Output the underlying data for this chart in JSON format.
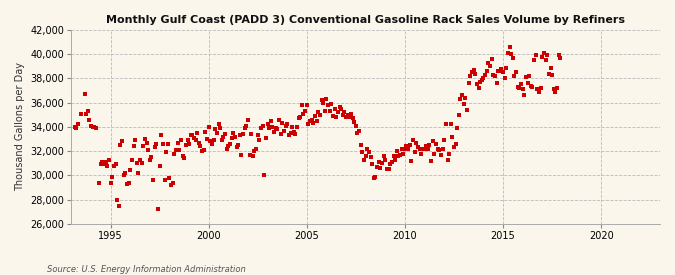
{
  "title": "Monthly Gulf Coast (PADD 3) Conventional Gasoline Rack Sales Volume by Refiners",
  "ylabel": "Thousand Gallons per Day",
  "source": "Source: U.S. Energy Information Administration",
  "background_color": "#FAF6EC",
  "plot_bg_color": "#FAF6EC",
  "marker_color": "#CC0000",
  "grid_color": "#BBBBBB",
  "ylim": [
    26000,
    42000
  ],
  "yticks": [
    26000,
    28000,
    30000,
    32000,
    34000,
    36000,
    38000,
    40000,
    42000
  ],
  "xticks": [
    1995,
    2000,
    2005,
    2010,
    2015,
    2020
  ],
  "xlim_start": 1993.0,
  "xlim_end": 2023.0,
  "data": [
    [
      1993.17,
      34000
    ],
    [
      1993.25,
      33900
    ],
    [
      1993.33,
      34200
    ],
    [
      1993.5,
      35100
    ],
    [
      1993.67,
      36700
    ],
    [
      1993.75,
      35100
    ],
    [
      1993.83,
      35300
    ],
    [
      1993.92,
      34600
    ],
    [
      1994.0,
      34100
    ],
    [
      1994.08,
      34000
    ],
    [
      1994.17,
      34000
    ],
    [
      1994.25,
      33900
    ],
    [
      1994.42,
      29400
    ],
    [
      1994.5,
      30900
    ],
    [
      1994.58,
      31100
    ],
    [
      1994.67,
      30900
    ],
    [
      1994.75,
      31100
    ],
    [
      1994.83,
      30800
    ],
    [
      1994.92,
      31300
    ],
    [
      1995.0,
      29400
    ],
    [
      1995.08,
      29900
    ],
    [
      1995.17,
      30800
    ],
    [
      1995.25,
      30900
    ],
    [
      1995.33,
      28000
    ],
    [
      1995.42,
      27500
    ],
    [
      1995.5,
      32500
    ],
    [
      1995.58,
      32800
    ],
    [
      1995.67,
      30000
    ],
    [
      1995.75,
      30200
    ],
    [
      1995.83,
      29300
    ],
    [
      1995.92,
      29400
    ],
    [
      1996.0,
      30400
    ],
    [
      1996.08,
      31300
    ],
    [
      1996.17,
      32400
    ],
    [
      1996.25,
      32900
    ],
    [
      1996.33,
      31000
    ],
    [
      1996.42,
      30200
    ],
    [
      1996.5,
      31300
    ],
    [
      1996.58,
      31000
    ],
    [
      1996.67,
      32400
    ],
    [
      1996.75,
      33000
    ],
    [
      1996.83,
      32700
    ],
    [
      1996.92,
      32100
    ],
    [
      1997.0,
      31300
    ],
    [
      1997.08,
      31500
    ],
    [
      1997.17,
      29600
    ],
    [
      1997.25,
      32300
    ],
    [
      1997.33,
      32600
    ],
    [
      1997.42,
      27200
    ],
    [
      1997.5,
      30800
    ],
    [
      1997.58,
      33300
    ],
    [
      1997.67,
      32600
    ],
    [
      1997.75,
      29600
    ],
    [
      1997.83,
      31900
    ],
    [
      1997.92,
      32600
    ],
    [
      1998.0,
      29800
    ],
    [
      1998.08,
      29200
    ],
    [
      1998.17,
      29400
    ],
    [
      1998.25,
      31800
    ],
    [
      1998.33,
      32100
    ],
    [
      1998.42,
      32700
    ],
    [
      1998.5,
      32100
    ],
    [
      1998.58,
      32900
    ],
    [
      1998.67,
      31600
    ],
    [
      1998.75,
      31400
    ],
    [
      1998.83,
      32500
    ],
    [
      1998.92,
      32900
    ],
    [
      1999.0,
      32600
    ],
    [
      1999.08,
      33300
    ],
    [
      1999.17,
      33300
    ],
    [
      1999.25,
      33100
    ],
    [
      1999.33,
      32900
    ],
    [
      1999.42,
      33500
    ],
    [
      1999.5,
      32700
    ],
    [
      1999.58,
      32400
    ],
    [
      1999.67,
      32000
    ],
    [
      1999.75,
      32100
    ],
    [
      1999.83,
      33600
    ],
    [
      1999.92,
      33000
    ],
    [
      2000.0,
      34000
    ],
    [
      2000.08,
      32800
    ],
    [
      2000.17,
      32600
    ],
    [
      2000.25,
      32900
    ],
    [
      2000.33,
      33800
    ],
    [
      2000.42,
      33500
    ],
    [
      2000.5,
      34200
    ],
    [
      2000.58,
      33900
    ],
    [
      2000.67,
      32900
    ],
    [
      2000.75,
      33200
    ],
    [
      2000.83,
      33400
    ],
    [
      2000.92,
      32200
    ],
    [
      2001.0,
      32400
    ],
    [
      2001.08,
      32600
    ],
    [
      2001.17,
      33100
    ],
    [
      2001.25,
      33500
    ],
    [
      2001.33,
      33200
    ],
    [
      2001.42,
      32300
    ],
    [
      2001.5,
      32500
    ],
    [
      2001.58,
      33300
    ],
    [
      2001.67,
      31700
    ],
    [
      2001.75,
      33400
    ],
    [
      2001.83,
      33900
    ],
    [
      2001.92,
      34100
    ],
    [
      2002.0,
      34600
    ],
    [
      2002.08,
      31700
    ],
    [
      2002.17,
      33400
    ],
    [
      2002.25,
      31600
    ],
    [
      2002.33,
      32000
    ],
    [
      2002.42,
      32200
    ],
    [
      2002.5,
      33300
    ],
    [
      2002.58,
      32900
    ],
    [
      2002.67,
      33900
    ],
    [
      2002.75,
      34100
    ],
    [
      2002.83,
      30000
    ],
    [
      2002.92,
      33100
    ],
    [
      2003.0,
      34200
    ],
    [
      2003.08,
      33900
    ],
    [
      2003.17,
      34500
    ],
    [
      2003.25,
      34000
    ],
    [
      2003.33,
      33600
    ],
    [
      2003.42,
      33900
    ],
    [
      2003.5,
      33800
    ],
    [
      2003.58,
      34600
    ],
    [
      2003.67,
      33400
    ],
    [
      2003.75,
      34300
    ],
    [
      2003.83,
      33700
    ],
    [
      2003.92,
      34100
    ],
    [
      2004.0,
      34200
    ],
    [
      2004.08,
      33300
    ],
    [
      2004.17,
      33500
    ],
    [
      2004.25,
      34000
    ],
    [
      2004.33,
      33600
    ],
    [
      2004.42,
      33400
    ],
    [
      2004.5,
      34000
    ],
    [
      2004.58,
      34700
    ],
    [
      2004.67,
      34800
    ],
    [
      2004.75,
      35800
    ],
    [
      2004.83,
      35100
    ],
    [
      2004.92,
      35300
    ],
    [
      2005.0,
      35800
    ],
    [
      2005.08,
      34200
    ],
    [
      2005.17,
      34500
    ],
    [
      2005.25,
      34600
    ],
    [
      2005.33,
      34300
    ],
    [
      2005.42,
      34900
    ],
    [
      2005.5,
      34500
    ],
    [
      2005.58,
      35200
    ],
    [
      2005.67,
      35000
    ],
    [
      2005.75,
      36200
    ],
    [
      2005.83,
      36000
    ],
    [
      2005.92,
      35300
    ],
    [
      2006.0,
      36300
    ],
    [
      2006.08,
      35800
    ],
    [
      2006.17,
      35300
    ],
    [
      2006.25,
      35900
    ],
    [
      2006.33,
      34900
    ],
    [
      2006.42,
      35500
    ],
    [
      2006.5,
      34800
    ],
    [
      2006.58,
      35200
    ],
    [
      2006.67,
      35600
    ],
    [
      2006.75,
      35500
    ],
    [
      2006.83,
      35000
    ],
    [
      2006.92,
      35200
    ],
    [
      2007.0,
      34800
    ],
    [
      2007.08,
      35000
    ],
    [
      2007.17,
      34800
    ],
    [
      2007.25,
      35100
    ],
    [
      2007.33,
      34700
    ],
    [
      2007.42,
      34400
    ],
    [
      2007.5,
      34100
    ],
    [
      2007.58,
      33500
    ],
    [
      2007.67,
      33700
    ],
    [
      2007.75,
      32500
    ],
    [
      2007.83,
      31900
    ],
    [
      2007.92,
      31300
    ],
    [
      2008.0,
      31600
    ],
    [
      2008.08,
      32200
    ],
    [
      2008.17,
      31900
    ],
    [
      2008.25,
      31500
    ],
    [
      2008.33,
      30900
    ],
    [
      2008.42,
      29800
    ],
    [
      2008.5,
      29900
    ],
    [
      2008.58,
      30700
    ],
    [
      2008.67,
      31100
    ],
    [
      2008.75,
      30600
    ],
    [
      2008.83,
      31000
    ],
    [
      2008.92,
      31600
    ],
    [
      2009.0,
      31300
    ],
    [
      2009.08,
      30500
    ],
    [
      2009.17,
      30500
    ],
    [
      2009.25,
      30900
    ],
    [
      2009.33,
      31100
    ],
    [
      2009.42,
      31600
    ],
    [
      2009.5,
      31300
    ],
    [
      2009.58,
      32000
    ],
    [
      2009.67,
      31600
    ],
    [
      2009.75,
      31700
    ],
    [
      2009.83,
      32200
    ],
    [
      2009.92,
      31800
    ],
    [
      2010.0,
      32200
    ],
    [
      2010.08,
      32400
    ],
    [
      2010.17,
      32200
    ],
    [
      2010.25,
      32500
    ],
    [
      2010.33,
      31200
    ],
    [
      2010.42,
      32900
    ],
    [
      2010.5,
      31900
    ],
    [
      2010.58,
      32700
    ],
    [
      2010.67,
      32300
    ],
    [
      2010.75,
      32200
    ],
    [
      2010.83,
      31800
    ],
    [
      2010.92,
      32200
    ],
    [
      2011.0,
      32200
    ],
    [
      2011.08,
      32400
    ],
    [
      2011.17,
      32200
    ],
    [
      2011.25,
      32500
    ],
    [
      2011.33,
      31200
    ],
    [
      2011.42,
      32800
    ],
    [
      2011.5,
      31800
    ],
    [
      2011.58,
      32600
    ],
    [
      2011.67,
      32200
    ],
    [
      2011.75,
      32100
    ],
    [
      2011.83,
      31700
    ],
    [
      2011.92,
      32200
    ],
    [
      2012.0,
      32900
    ],
    [
      2012.08,
      34200
    ],
    [
      2012.17,
      31300
    ],
    [
      2012.25,
      31800
    ],
    [
      2012.33,
      34200
    ],
    [
      2012.42,
      33200
    ],
    [
      2012.5,
      32300
    ],
    [
      2012.58,
      32600
    ],
    [
      2012.67,
      33900
    ],
    [
      2012.75,
      35000
    ],
    [
      2012.83,
      36300
    ],
    [
      2012.92,
      36600
    ],
    [
      2013.0,
      35900
    ],
    [
      2013.08,
      36400
    ],
    [
      2013.17,
      35400
    ],
    [
      2013.25,
      37600
    ],
    [
      2013.33,
      38200
    ],
    [
      2013.42,
      38500
    ],
    [
      2013.5,
      38700
    ],
    [
      2013.58,
      38400
    ],
    [
      2013.67,
      37500
    ],
    [
      2013.75,
      37200
    ],
    [
      2013.83,
      37700
    ],
    [
      2013.92,
      37900
    ],
    [
      2014.0,
      38000
    ],
    [
      2014.08,
      38300
    ],
    [
      2014.17,
      38600
    ],
    [
      2014.25,
      39300
    ],
    [
      2014.33,
      39000
    ],
    [
      2014.42,
      39600
    ],
    [
      2014.5,
      38300
    ],
    [
      2014.58,
      38200
    ],
    [
      2014.67,
      37600
    ],
    [
      2014.75,
      38600
    ],
    [
      2014.83,
      38600
    ],
    [
      2014.92,
      38800
    ],
    [
      2015.0,
      38500
    ],
    [
      2015.08,
      38000
    ],
    [
      2015.17,
      38900
    ],
    [
      2015.25,
      40100
    ],
    [
      2015.33,
      40600
    ],
    [
      2015.42,
      40000
    ],
    [
      2015.5,
      39700
    ],
    [
      2015.58,
      38200
    ],
    [
      2015.67,
      38500
    ],
    [
      2015.75,
      37300
    ],
    [
      2015.83,
      37200
    ],
    [
      2015.92,
      37500
    ],
    [
      2016.0,
      37100
    ],
    [
      2016.08,
      36600
    ],
    [
      2016.17,
      38100
    ],
    [
      2016.25,
      37600
    ],
    [
      2016.33,
      38200
    ],
    [
      2016.42,
      37400
    ],
    [
      2016.5,
      37300
    ],
    [
      2016.58,
      39500
    ],
    [
      2016.67,
      39900
    ],
    [
      2016.75,
      37100
    ],
    [
      2016.83,
      36900
    ],
    [
      2016.92,
      37200
    ],
    [
      2017.0,
      39800
    ],
    [
      2017.08,
      40100
    ],
    [
      2017.17,
      39500
    ],
    [
      2017.25,
      39900
    ],
    [
      2017.33,
      38400
    ],
    [
      2017.42,
      38900
    ],
    [
      2017.5,
      38300
    ],
    [
      2017.58,
      37100
    ],
    [
      2017.67,
      36900
    ],
    [
      2017.75,
      37200
    ],
    [
      2017.83,
      39900
    ],
    [
      2017.92,
      39700
    ]
  ]
}
